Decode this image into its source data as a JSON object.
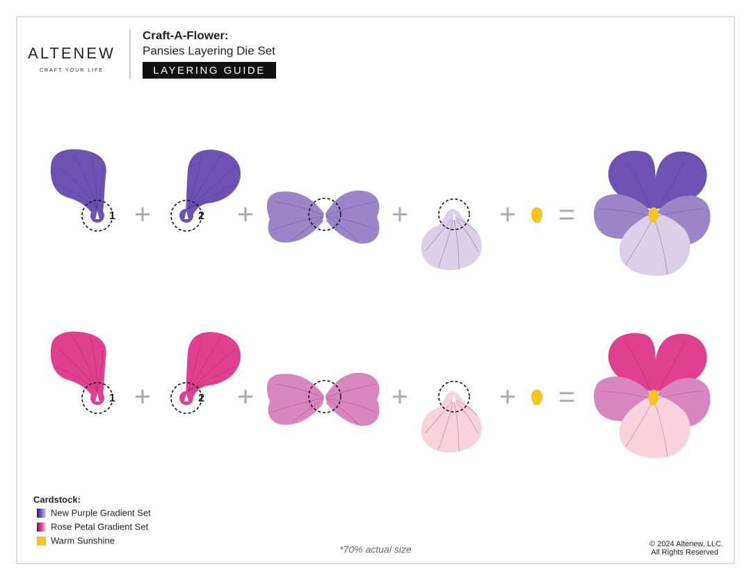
{
  "header": {
    "logo": "ALTENEW",
    "tagline": "CRAFT YOUR LIFE",
    "title": "Craft-A-Flower:",
    "subtitle": "Pansies Layering Die Set",
    "badge": "LAYERING GUIDE"
  },
  "rows": [
    {
      "step_labels": [
        "1",
        "2"
      ],
      "colors": [
        "#6b52b3",
        "#9b85c9",
        "#dccfea",
        "#f5c51a"
      ]
    },
    {
      "step_labels": [
        "1",
        "2"
      ],
      "colors": [
        "#e0408f",
        "#d886c0",
        "#f8d3de",
        "#f5c51a"
      ]
    }
  ],
  "legend": {
    "title": "Cardstock:",
    "items": [
      {
        "label": "New Purple Gradient Set",
        "colors": [
          "#2a1a5e",
          "#7a5cc0",
          "#d8ccf0"
        ]
      },
      {
        "label": "Rose Petal Gradient Set",
        "colors": [
          "#7a1040",
          "#e0408f",
          "#f8d3de"
        ]
      },
      {
        "label": "Warm Sunshine",
        "colors": [
          "#f5c51a",
          "#f5c51a",
          "#f5c51a"
        ]
      }
    ]
  },
  "footer": {
    "note": "*70% actual size",
    "copyright": "© 2024 Altenew, LLC.",
    "rights": "All Rights Reserved"
  }
}
